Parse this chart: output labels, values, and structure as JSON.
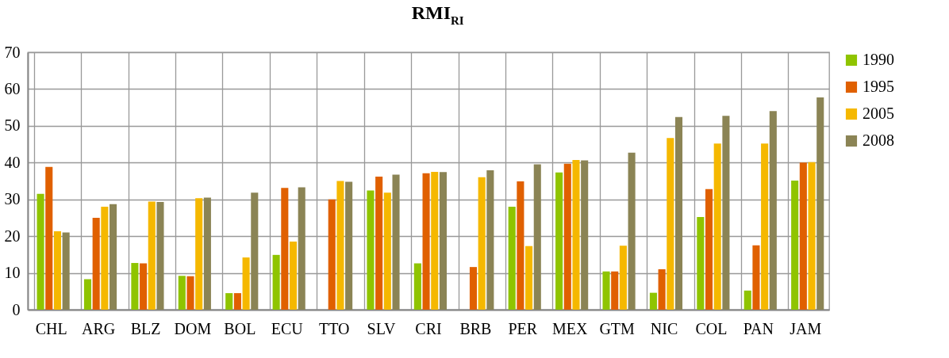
{
  "chart_data": {
    "type": "bar",
    "title": "RMI$_{RI}$",
    "categories": [
      "CHL",
      "ARG",
      "BLZ",
      "DOM",
      "BOL",
      "ECU",
      "TTO",
      "SLV",
      "CRI",
      "BRB",
      "PER",
      "MEX",
      "GTM",
      "NIC",
      "COL",
      "PAN",
      "JAM"
    ],
    "series": [
      {
        "name": "1990",
        "color": "#8fc400",
        "values": [
          31.5,
          8.3,
          12.7,
          9.2,
          4.5,
          14.9,
          null,
          32.4,
          12.6,
          null,
          28,
          37.3,
          10.4,
          4.6,
          25.2,
          5.2,
          35.1
        ]
      },
      {
        "name": "1995",
        "color": "#e06000",
        "values": [
          38.8,
          25,
          12.6,
          9.1,
          4.5,
          33.1,
          30,
          36.2,
          37.1,
          11.6,
          34.9,
          39.7,
          10.4,
          11,
          32.8,
          17.5,
          40
        ]
      },
      {
        "name": "2005",
        "color": "#f5b800",
        "values": [
          21.3,
          28,
          29.4,
          30.3,
          14.2,
          18.5,
          35,
          31.8,
          37.5,
          36,
          17.3,
          40.7,
          17.4,
          46.7,
          45.2,
          45.2,
          40.1
        ]
      },
      {
        "name": "2008",
        "color": "#8b8455",
        "values": [
          21,
          28.7,
          29.3,
          30.5,
          31.8,
          33.3,
          34.8,
          36.7,
          37.4,
          37.9,
          39.5,
          40.6,
          42.7,
          52.4,
          52.7,
          54,
          57.7
        ]
      }
    ],
    "ylim": [
      0,
      70
    ],
    "yticks": [
      0,
      10,
      20,
      30,
      40,
      50,
      60,
      70
    ],
    "grid": true,
    "legend": "right"
  }
}
